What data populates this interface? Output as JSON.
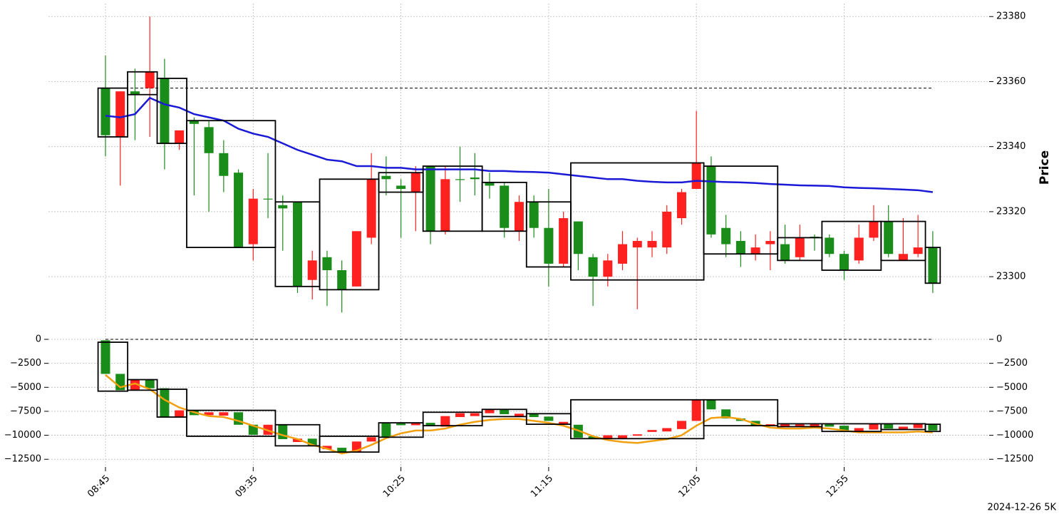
{
  "chart_data": [
    {
      "type": "candlestick",
      "ylabel": "Price",
      "up_color": "#1a8c1a",
      "down_color": "#ff2020",
      "open": [
        23343.5,
        23357,
        23356,
        23363,
        23341,
        23345,
        23347,
        23338,
        23331,
        23309,
        23324,
        23324,
        23321,
        23297,
        23305,
        23302,
        23296,
        23314,
        23330,
        23330,
        23327,
        23332,
        23314,
        23330,
        23330,
        23330,
        23328,
        23315,
        23323,
        23315,
        23304,
        23318,
        23307,
        23300,
        23305,
        23310,
        23311,
        23311,
        23320,
        23326,
        23335,
        23313,
        23310,
        23307,
        23309,
        23311,
        23305,
        23312,
        23312,
        23307,
        23302,
        23312,
        23317,
        23307,
        23307,
        23309,
        23298
      ],
      "high": [
        23368,
        23357,
        23364,
        23380,
        23367,
        23345,
        23349,
        23348,
        23342,
        23333,
        23327,
        23338,
        23325,
        23323,
        23308,
        23308,
        23305,
        23314,
        23338,
        23337,
        23330,
        23334,
        23334,
        23334,
        23340,
        23338,
        23332,
        23329,
        23325,
        23325,
        23327,
        23320,
        23317,
        23307,
        23307,
        23314,
        23312,
        23314,
        23322,
        23327,
        23351,
        23337,
        23319,
        23314,
        23313,
        23314,
        23316,
        23316,
        23313,
        23313,
        23308,
        23316,
        23322,
        23322,
        23318,
        23319,
        23314
      ],
      "low": [
        23337,
        23328,
        23342,
        23343,
        23333,
        23339,
        23325,
        23320,
        23326,
        23309,
        23305,
        23318,
        23308,
        23295,
        23293,
        23291,
        23289,
        23297,
        23310,
        23325,
        23312,
        23314,
        23310,
        23313,
        23323,
        23325,
        23324,
        23312,
        23311,
        23312,
        23297,
        23303,
        23302,
        23291,
        23297,
        23302,
        23290,
        23306,
        23307,
        23316,
        23327,
        23312,
        23306,
        23303,
        23305,
        23302,
        23304,
        23305,
        23308,
        23306,
        23299,
        23304,
        23311,
        23306,
        23305,
        23306,
        23295
      ],
      "close": [
        23358,
        23343,
        23357,
        23358,
        23361,
        23341,
        23348,
        23346,
        23338,
        23332,
        23310,
        23324,
        23322,
        23323,
        23299,
        23306,
        23302,
        23297,
        23312,
        23331,
        23328,
        23326,
        23334,
        23314,
        23330,
        23330.5,
        23329,
        23328,
        23314,
        23323,
        23315,
        23304,
        23317,
        23306,
        23300,
        23304,
        23309,
        23309,
        23309,
        23318,
        23327,
        23334,
        23315,
        23311,
        23307,
        23310,
        23310,
        23306,
        23312.3,
        23312,
        23307,
        23305,
        23312,
        23317,
        23305,
        23307,
        23309
      ],
      "lines": [
        {
          "color": "#1a1ad6",
          "values": [
            23349.5,
            23349,
            23350,
            23355,
            23353,
            23352,
            23350,
            23349,
            23348,
            23345.5,
            23344,
            23343,
            23341,
            23339,
            23337.5,
            23336,
            23335.5,
            23334,
            23334,
            23333.5,
            23333.5,
            23333,
            23333,
            23333,
            23333,
            23333,
            23332.5,
            23332.5,
            23332.3,
            23332.2,
            23332,
            23331.5,
            23331,
            23330.5,
            23330,
            23330,
            23329.5,
            23329.2,
            23329,
            23329,
            23329.5,
            23329.3,
            23329.1,
            23329,
            23328.8,
            23328.5,
            23328.3,
            23328.1,
            23328,
            23327.9,
            23327.5,
            23327.3,
            23327.2,
            23327,
            23326.8,
            23326.6,
            23326
          ]
        }
      ],
      "boxes": {
        "start": [
          0,
          2,
          4,
          6,
          12,
          15,
          19,
          22,
          26,
          29,
          32,
          41,
          46,
          49,
          53,
          56
        ],
        "end": [
          1,
          3,
          5,
          11,
          14,
          18,
          21,
          25,
          28,
          31,
          40,
          45,
          48,
          52,
          55,
          56
        ],
        "top": [
          23358,
          23363,
          23361,
          23348,
          23323,
          23330,
          23332,
          23334,
          23329,
          23323,
          23335,
          23334,
          23312,
          23317,
          23317,
          23309
        ],
        "bottom": [
          23343,
          23356,
          23341,
          23309,
          23297,
          23296,
          23326,
          23314,
          23314,
          23303,
          23299,
          23307,
          23305,
          23302,
          23305,
          23298
        ]
      },
      "hline": 23358,
      "ylim": [
        23286,
        23384
      ],
      "yticks": [
        23300,
        23320,
        23340,
        23360,
        23380
      ],
      "grid": true
    },
    {
      "type": "candlestick",
      "up_color": "#1a8c1a",
      "down_color": "#ff2020",
      "left_labels": true,
      "categories": [
        "08:45",
        null,
        null,
        null,
        null,
        null,
        null,
        null,
        null,
        null,
        "09:35",
        null,
        null,
        null,
        null,
        null,
        null,
        null,
        null,
        null,
        "10:25",
        null,
        null,
        null,
        null,
        null,
        null,
        null,
        null,
        null,
        "11:15",
        null,
        null,
        null,
        null,
        null,
        null,
        null,
        null,
        null,
        "12:05",
        null,
        null,
        null,
        null,
        null,
        null,
        null,
        null,
        null,
        "12:55",
        null,
        null,
        null,
        null,
        null,
        null
      ],
      "open": [
        -3600,
        -5300,
        -4200,
        -5100,
        -8100,
        -7400,
        -7900,
        -7600,
        -7600,
        -8900,
        -9950,
        -8900,
        -10400,
        -10350,
        -11100,
        -11100,
        -11750,
        -10650,
        -10200,
        -10200,
        -8950,
        -8700,
        -8950,
        -8000,
        -7700,
        -7700,
        -7300,
        -7800,
        -7750,
        -8100,
        -8500,
        -8600,
        -10250,
        -10300,
        -10000,
        -10000,
        -9900,
        -9450,
        -9250,
        -8500,
        -6300,
        -7300,
        -8250,
        -8500,
        -9000,
        -8850,
        -8850,
        -8850,
        -8850,
        -9100,
        -9500,
        -9250,
        -8800,
        -9300,
        -9100,
        -8800,
        -9500
      ],
      "close": [
        -100,
        -3600,
        -5300,
        -4200,
        -5100,
        -8100,
        -7400,
        -7900,
        -7950,
        -7600,
        -8900,
        -9950,
        -8900,
        -10700,
        -10350,
        -11450,
        -11300,
        -11700,
        -10650,
        -8700,
        -8700,
        -8950,
        -8700,
        -9100,
        -8100,
        -8000,
        -7700,
        -7300,
        -8050,
        -7750,
        -8050,
        -8900,
        -8900,
        -10100,
        -10350,
        -10300,
        -10050,
        -9650,
        -9600,
        -9350,
        -8500,
        -6300,
        -7300,
        -8250,
        -8500,
        -9000,
        -9100,
        -9050,
        -9100,
        -8850,
        -9000,
        -9550,
        -9400,
        -8800,
        -9400,
        -9250,
        -8900
      ],
      "lines": [
        {
          "color": "#f0a010",
          "values": [
            -3700,
            -5000,
            -4600,
            -5200,
            -6300,
            -7100,
            -7600,
            -8000,
            -8100,
            -8500,
            -9000,
            -9500,
            -10000,
            -10400,
            -11000,
            -11400,
            -11900,
            -11600,
            -11000,
            -10300,
            -9800,
            -9500,
            -9500,
            -9300,
            -8900,
            -8600,
            -8400,
            -8300,
            -8300,
            -8500,
            -8700,
            -9000,
            -9500,
            -10100,
            -10500,
            -10700,
            -10800,
            -10600,
            -10400,
            -10000,
            -9000,
            -8200,
            -8100,
            -8300,
            -8800,
            -9200,
            -9300,
            -9300,
            -9200,
            -9300,
            -9500,
            -9700,
            -9700,
            -9700,
            -9700,
            -9600,
            -9700
          ]
        }
      ],
      "boxes": {
        "start": [
          0,
          2,
          4,
          6,
          12,
          15,
          19,
          22,
          26,
          29,
          32,
          41,
          46,
          49,
          53,
          56
        ],
        "end": [
          1,
          3,
          5,
          11,
          14,
          18,
          21,
          25,
          28,
          31,
          40,
          45,
          48,
          52,
          55,
          56
        ],
        "top": [
          -300,
          -4200,
          -5200,
          -7400,
          -8900,
          -10100,
          -8700,
          -7600,
          -7300,
          -7750,
          -6300,
          -6300,
          -8800,
          -8800,
          -8800,
          -8850
        ],
        "bottom": [
          -5400,
          -5300,
          -8100,
          -10100,
          -11100,
          -11750,
          -10200,
          -9000,
          -8050,
          -8850,
          -10350,
          -9000,
          -9100,
          -9600,
          -9400,
          -9600
        ]
      },
      "hline": 0,
      "ylim": [
        -13300,
        1560
      ],
      "yticks": [
        0,
        {
          "value": -2500,
          "label": "−2500"
        },
        {
          "value": -5000,
          "label": "−5000"
        },
        {
          "value": -7500,
          "label": "−7500"
        },
        {
          "value": -10000,
          "label": "−10000"
        },
        {
          "value": -12500,
          "label": "−12500"
        }
      ],
      "grid": true,
      "annotation": "2024-12-26 5K"
    }
  ]
}
